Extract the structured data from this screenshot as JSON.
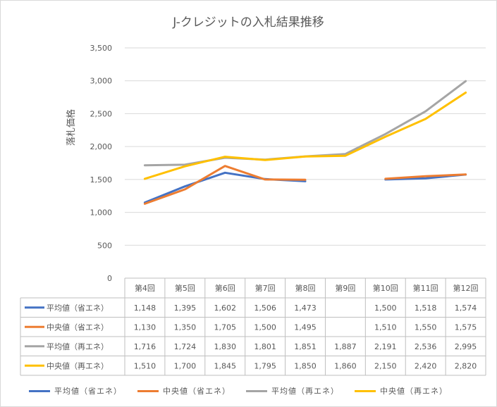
{
  "chart_data": {
    "type": "line",
    "title": "J-クレジットの入札結果推移",
    "ylabel": "落札価格",
    "xlabel": "",
    "ylim": [
      0,
      3500
    ],
    "ytick_step": 500,
    "ytick_labels": [
      "0",
      "500",
      "1,000",
      "1,500",
      "2,000",
      "2,500",
      "3,000",
      "3,500"
    ],
    "grid": true,
    "legend_position": "bottom",
    "categories": [
      "第4回",
      "第5回",
      "第6回",
      "第7回",
      "第8回",
      "第9回",
      "第10回",
      "第11回",
      "第12回"
    ],
    "series": [
      {
        "name": "平均値（省エネ）",
        "color": "#4472C4",
        "values": [
          1148,
          1395,
          1602,
          1506,
          1473,
          null,
          1500,
          1518,
          1574
        ],
        "labels": [
          "1,148",
          "1,395",
          "1,602",
          "1,506",
          "1,473",
          "",
          "1,500",
          "1,518",
          "1,574"
        ]
      },
      {
        "name": "中央値（省エネ）",
        "color": "#ED7D31",
        "values": [
          1130,
          1350,
          1705,
          1500,
          1495,
          null,
          1510,
          1550,
          1575
        ],
        "labels": [
          "1,130",
          "1,350",
          "1,705",
          "1,500",
          "1,495",
          "",
          "1,510",
          "1,550",
          "1,575"
        ]
      },
      {
        "name": "平均値（再エネ）",
        "color": "#A5A5A5",
        "values": [
          1716,
          1724,
          1830,
          1801,
          1851,
          1887,
          2191,
          2536,
          2995
        ],
        "labels": [
          "1,716",
          "1,724",
          "1,830",
          "1,801",
          "1,851",
          "1,887",
          "2,191",
          "2,536",
          "2,995"
        ]
      },
      {
        "name": "中央値（再エネ）",
        "color": "#FFC000",
        "values": [
          1510,
          1700,
          1845,
          1795,
          1850,
          1860,
          2150,
          2420,
          2820
        ],
        "labels": [
          "1,510",
          "1,700",
          "1,845",
          "1,795",
          "1,850",
          "1,860",
          "2,150",
          "2,420",
          "2,820"
        ]
      }
    ]
  }
}
